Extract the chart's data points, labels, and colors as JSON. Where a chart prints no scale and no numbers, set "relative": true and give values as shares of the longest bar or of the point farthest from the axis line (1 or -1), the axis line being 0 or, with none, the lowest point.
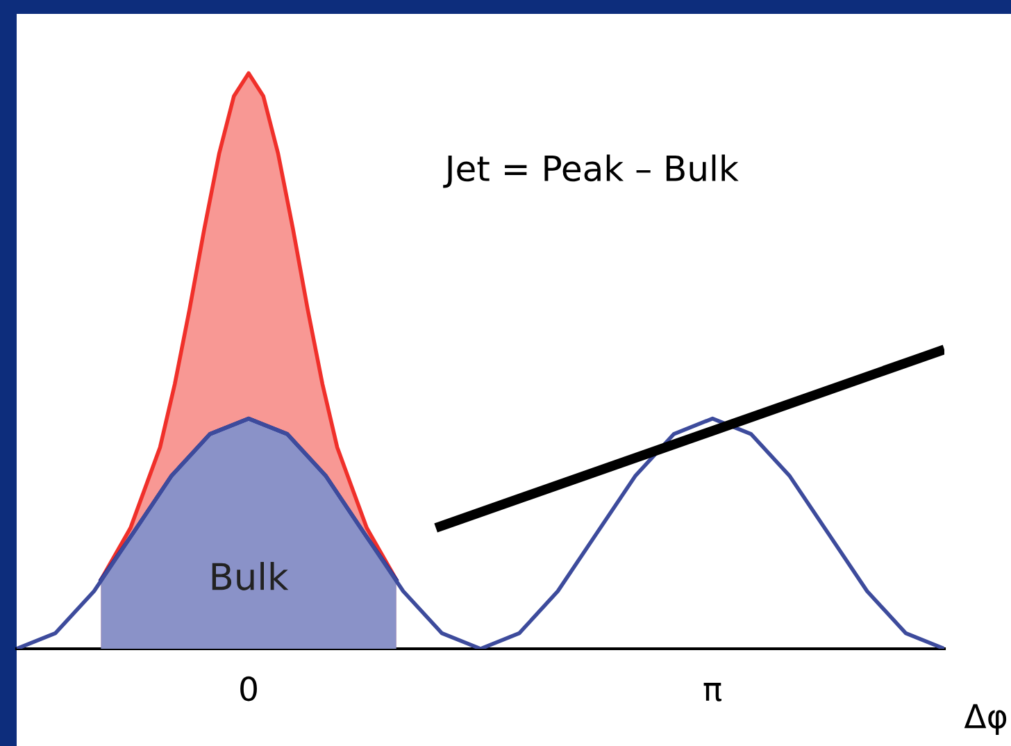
{
  "chart_data": {
    "type": "area",
    "relative": true,
    "xlabel": "Δφ",
    "xlim": [
      -1.571,
      4.712
    ],
    "xticks": [
      0,
      {
        "value": 3.1416,
        "label": "π"
      }
    ],
    "annotations": [
      "Jet = Peak – Bulk"
    ],
    "grid": false,
    "series": [
      {
        "color": "#f0302a",
        "x": [
          -1.0,
          -0.8,
          -0.6,
          -0.5,
          -0.4,
          -0.3,
          -0.2,
          -0.1,
          0,
          0.1,
          0.2,
          0.3,
          0.4,
          0.5,
          0.6,
          0.8,
          1.0
        ],
        "values": [
          0.12,
          0.21,
          0.35,
          0.46,
          0.59,
          0.73,
          0.86,
          0.96,
          1.0,
          0.96,
          0.86,
          0.73,
          0.59,
          0.46,
          0.35,
          0.21,
          0.12
        ]
      },
      {
        "name": "Bulk",
        "color": "#162692",
        "x": [
          -1.0,
          -0.785,
          -0.524,
          -0.262,
          0,
          0.262,
          0.524,
          0.785,
          1.0
        ],
        "values": [
          0.12,
          0.2,
          0.3,
          0.373,
          0.4,
          0.373,
          0.3,
          0.2,
          0.12
        ]
      },
      {
        "type": "line",
        "color": "#3d4b9c",
        "x": [
          -1.571,
          -1.309,
          -1.047,
          -0.785,
          -0.524,
          -0.262,
          0,
          0.262,
          0.524,
          0.785,
          1.047,
          1.309,
          1.571,
          1.833,
          2.094,
          2.356,
          2.618,
          2.88,
          3.142,
          3.403,
          3.665,
          3.927,
          4.189,
          4.451,
          4.712
        ],
        "values": [
          0,
          0.027,
          0.1,
          0.2,
          0.3,
          0.373,
          0.4,
          0.373,
          0.3,
          0.2,
          0.1,
          0.027,
          0,
          0.027,
          0.1,
          0.2,
          0.3,
          0.373,
          0.4,
          0.373,
          0.3,
          0.2,
          0.1,
          0.027,
          0
        ]
      },
      {
        "type": "line",
        "color": "#000000",
        "x": [
          1.268,
          4.712
        ],
        "values": [
          0.21,
          0.52
        ]
      }
    ]
  }
}
